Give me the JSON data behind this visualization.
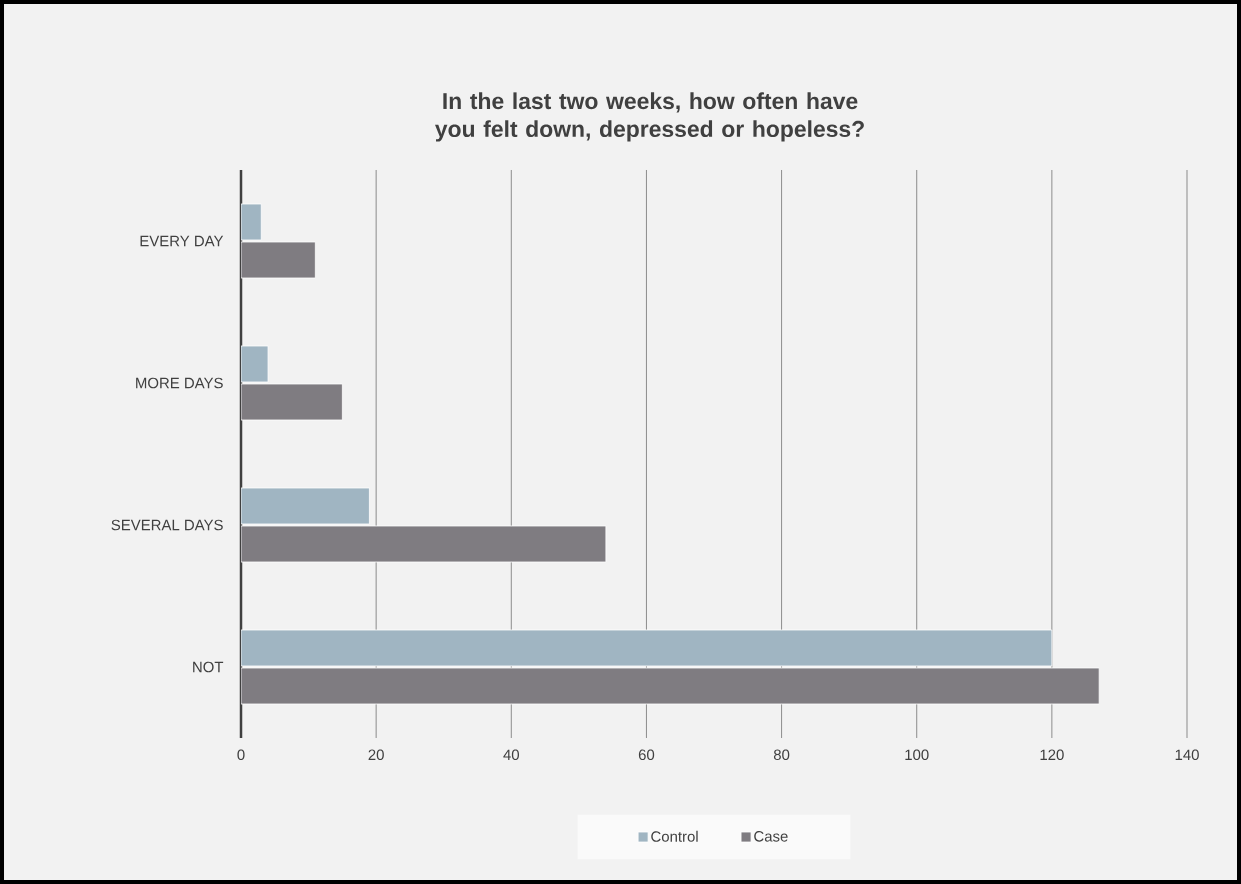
{
  "chart_data": {
    "type": "bar",
    "orientation": "horizontal",
    "title": "In the last two weeks, how often have you felt down, depressed or hopeless?",
    "categories": [
      "EVERY DAY",
      "MORE DAYS",
      "SEVERAL DAYS",
      "NOT"
    ],
    "series": [
      {
        "name": "Control",
        "color": "#a0b5c2",
        "values": [
          3,
          4,
          19,
          120
        ]
      },
      {
        "name": "Case",
        "color": "#7f7c81",
        "values": [
          11,
          15,
          54,
          127
        ]
      }
    ],
    "xlim": [
      0,
      140
    ],
    "xticks": [
      0,
      20,
      40,
      60,
      80,
      100,
      120,
      140
    ],
    "grid": "x",
    "legend": "bottom"
  }
}
